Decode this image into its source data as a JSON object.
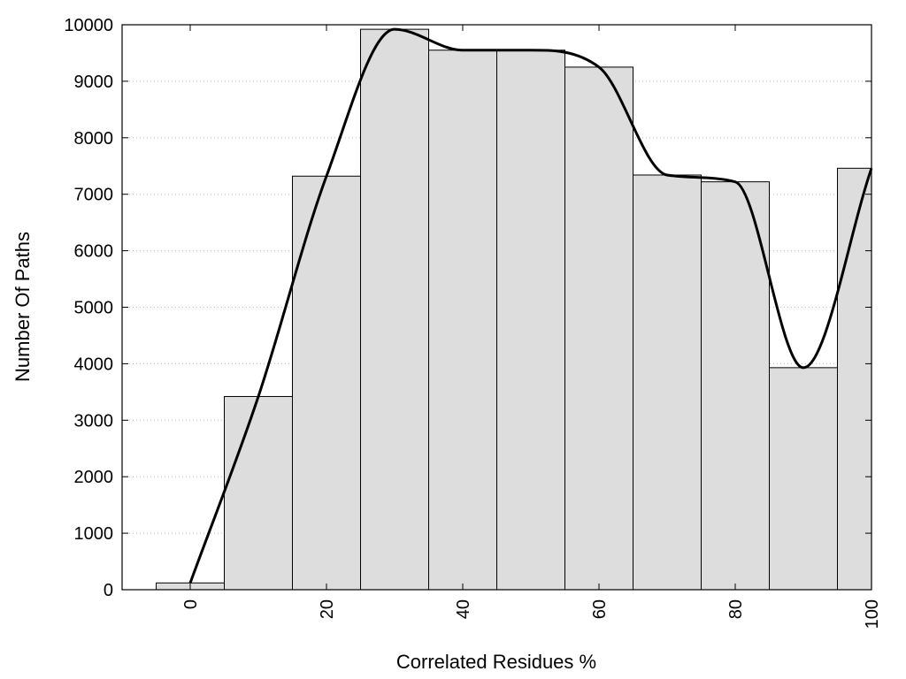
{
  "chart_data": {
    "type": "bar",
    "xlabel": "Correlated Residues %",
    "ylabel": "Number Of Paths",
    "xlim": [
      -10,
      100
    ],
    "ylim": [
      0,
      10000
    ],
    "x_ticks": [
      "0",
      "20",
      "40",
      "60",
      "80",
      "100"
    ],
    "y_ticks": [
      "0",
      "1000",
      "2000",
      "3000",
      "4000",
      "5000",
      "6000",
      "7000",
      "8000",
      "9000",
      "10000"
    ],
    "grid": "horizontal dotted",
    "bar_width": 10,
    "series": [
      {
        "values_x": [
          0,
          10,
          20,
          30,
          40,
          50,
          60,
          70,
          80,
          90,
          100
        ],
        "values": [
          120,
          3420,
          7320,
          9920,
          9550,
          9550,
          9250,
          7340,
          7220,
          3930,
          7460
        ]
      },
      {
        "type": "line",
        "values_x": [
          0,
          10,
          20,
          30,
          40,
          50,
          60,
          70,
          80,
          90,
          100
        ],
        "values": [
          120,
          3420,
          7320,
          9920,
          9550,
          9550,
          9250,
          7340,
          7220,
          3930,
          7460
        ]
      }
    ],
    "colors": {
      "bar_fill": "#dddddd",
      "bar_stroke": "#000000",
      "line": "#000000",
      "grid": "#bbbbbb"
    }
  }
}
